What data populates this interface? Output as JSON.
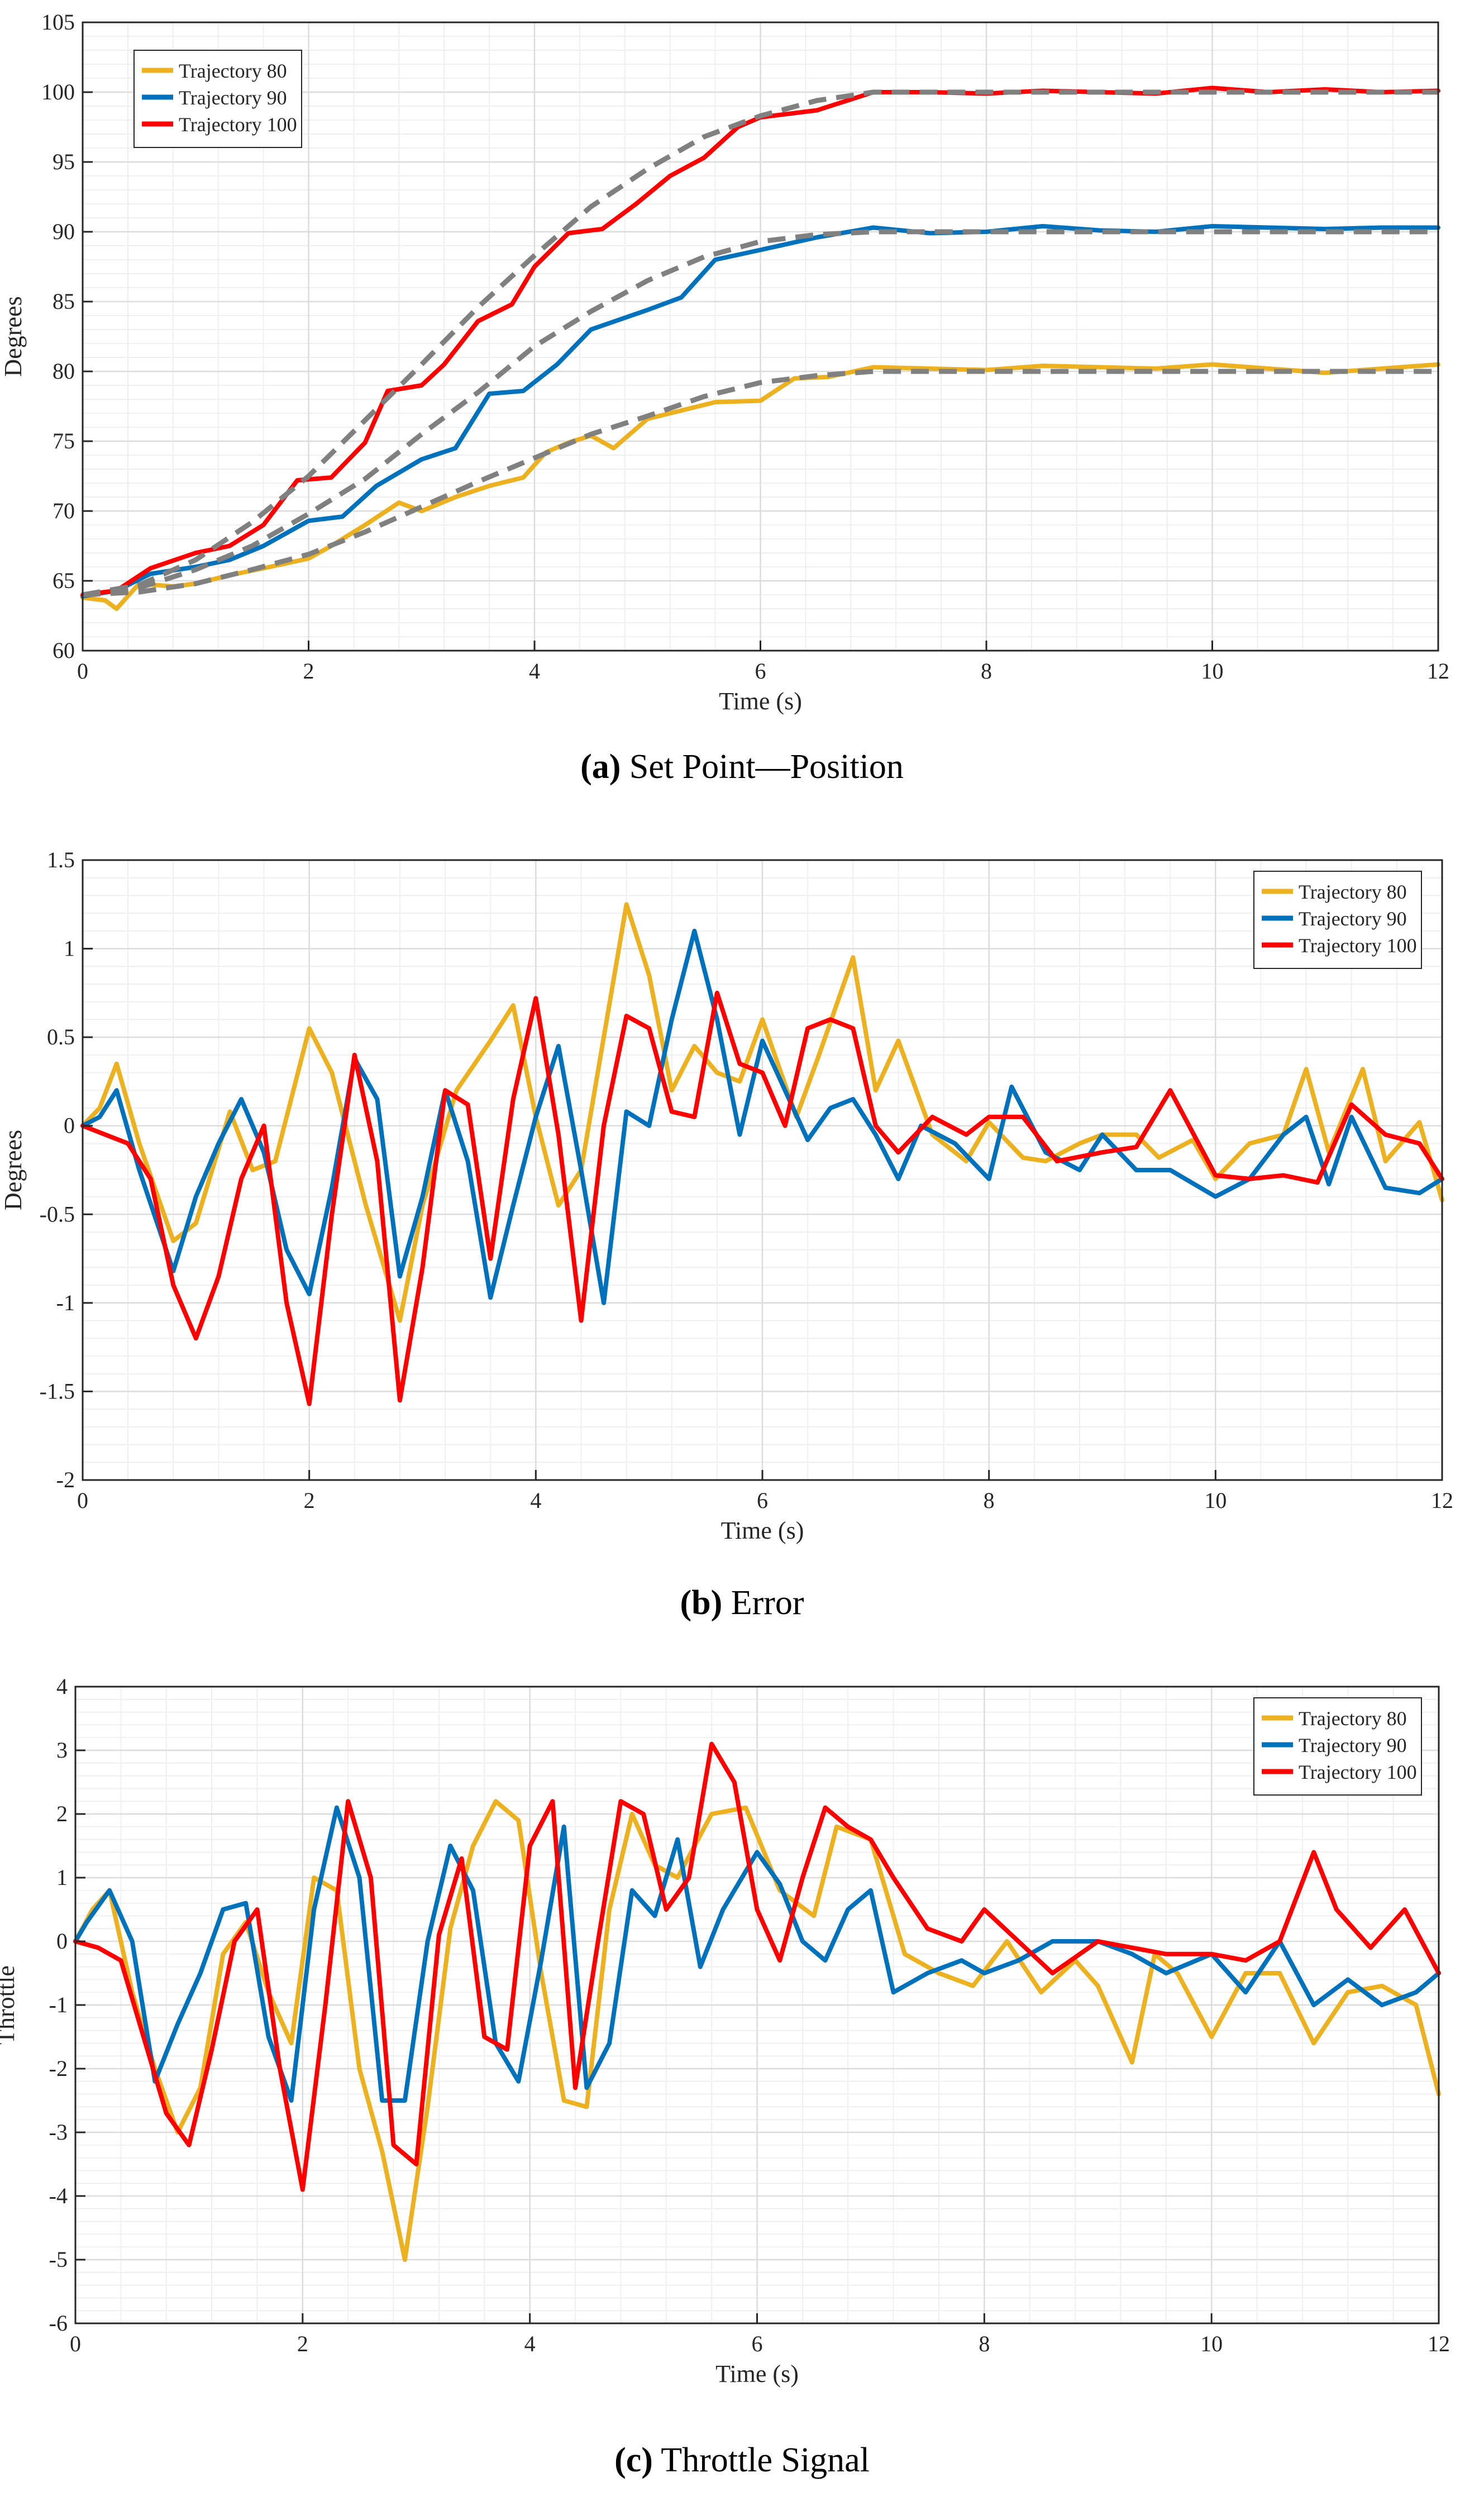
{
  "colors": {
    "t80": "#EDB120",
    "t90": "#0072BD",
    "t100": "#FF0000",
    "ref": "#808080"
  },
  "captions": [
    {
      "label": "(a)",
      "text": " Set Point—Position"
    },
    {
      "label": "(b)",
      "text": " Error"
    },
    {
      "label": "(c)",
      "text": " Throttle Signal"
    }
  ],
  "chart_data": [
    {
      "type": "line",
      "title": "",
      "xlabel": "Time (s)",
      "ylabel": "Degrees",
      "xlim": [
        0,
        12
      ],
      "ylim": [
        60,
        105
      ],
      "xticks": [
        0,
        2,
        4,
        6,
        8,
        10,
        12
      ],
      "yticks": [
        60,
        65,
        70,
        75,
        80,
        85,
        90,
        95,
        100,
        105
      ],
      "grid": true,
      "legend": "top-left",
      "reference_style": "dashed gray",
      "series": [
        {
          "name": "Trajectory 80",
          "color_key": "t80",
          "x": [
            0,
            0.2,
            0.3,
            0.5,
            0.8,
            1.0,
            1.3,
            1.6,
            2.0,
            2.2,
            2.5,
            2.8,
            3.0,
            3.3,
            3.6,
            3.9,
            4.1,
            4.3,
            4.5,
            4.7,
            5.0,
            5.3,
            5.6,
            6.0,
            6.3,
            6.6,
            7.0,
            7.5,
            8.0,
            8.5,
            9.0,
            9.5,
            10.0,
            10.5,
            11.0,
            11.5,
            12.0
          ],
          "y": [
            63.8,
            63.6,
            63.0,
            64.8,
            64.6,
            64.8,
            65.4,
            65.9,
            66.6,
            67.5,
            69.0,
            70.6,
            70.0,
            71.0,
            71.8,
            72.4,
            74.2,
            74.9,
            75.4,
            74.5,
            76.6,
            77.2,
            77.8,
            77.9,
            79.5,
            79.6,
            80.3,
            80.2,
            80.1,
            80.4,
            80.3,
            80.2,
            80.5,
            80.2,
            79.9,
            80.2,
            80.5
          ]
        },
        {
          "name": "Trajectory 90",
          "color_key": "t90",
          "x": [
            0,
            0.3,
            0.6,
            1.0,
            1.3,
            1.6,
            2.0,
            2.3,
            2.6,
            3.0,
            3.3,
            3.6,
            3.9,
            4.2,
            4.5,
            5.0,
            5.3,
            5.6,
            6.0,
            6.5,
            7.0,
            7.5,
            8.0,
            8.5,
            9.0,
            9.5,
            10.0,
            10.5,
            11.0,
            11.5,
            12.0
          ],
          "y": [
            63.9,
            64.3,
            65.5,
            66.0,
            66.5,
            67.5,
            69.3,
            69.6,
            71.8,
            73.7,
            74.5,
            78.4,
            78.6,
            80.5,
            83.0,
            84.4,
            85.3,
            88.0,
            88.7,
            89.6,
            90.3,
            89.9,
            90.0,
            90.4,
            90.1,
            90.0,
            90.4,
            90.3,
            90.2,
            90.3,
            90.3
          ]
        },
        {
          "name": "Trajectory 100",
          "color_key": "t100",
          "x": [
            0,
            0.3,
            0.6,
            1.0,
            1.3,
            1.6,
            1.9,
            2.2,
            2.5,
            2.7,
            3.0,
            3.2,
            3.5,
            3.8,
            4.0,
            4.3,
            4.6,
            4.9,
            5.2,
            5.5,
            5.8,
            6.0,
            6.5,
            7.0,
            7.5,
            8.0,
            8.5,
            9.0,
            9.5,
            10.0,
            10.5,
            11.0,
            11.5,
            12.0
          ],
          "y": [
            64.0,
            64.3,
            65.9,
            67.0,
            67.5,
            69.0,
            72.2,
            72.4,
            74.9,
            78.6,
            79.0,
            80.5,
            83.6,
            84.8,
            87.5,
            89.9,
            90.2,
            92.0,
            94.0,
            95.3,
            97.5,
            98.2,
            98.7,
            100.0,
            100.0,
            99.9,
            100.1,
            100.0,
            99.9,
            100.3,
            100.0,
            100.2,
            100.0,
            100.1
          ]
        },
        {
          "name": "",
          "color_key": "ref",
          "x": [
            0,
            0.5,
            1.0,
            1.5,
            2.0,
            2.5,
            3.0,
            3.5,
            4.0,
            4.5,
            5.0,
            5.5,
            6.0,
            6.5,
            7.0,
            7.5,
            8,
            9,
            10,
            11,
            12
          ],
          "y80": [
            64.0,
            64.2,
            64.8,
            65.8,
            66.9,
            68.5,
            70.3,
            72.1,
            73.8,
            75.5,
            76.8,
            78.2,
            79.2,
            79.7,
            80.0,
            80.0,
            80,
            80,
            80,
            80,
            80
          ],
          "y90": [
            64.0,
            64.5,
            65.8,
            67.5,
            69.8,
            72.3,
            75.5,
            78.5,
            81.8,
            84.3,
            86.5,
            88.2,
            89.3,
            89.8,
            90.0,
            90.0,
            90,
            90,
            90,
            90,
            90
          ],
          "y100": [
            64.0,
            64.7,
            66.5,
            69.2,
            72.5,
            76.5,
            80.5,
            84.6,
            88.3,
            91.8,
            94.5,
            96.8,
            98.3,
            99.4,
            100.0,
            100.0,
            100,
            100,
            100,
            100,
            100
          ]
        }
      ]
    },
    {
      "type": "line",
      "title": "",
      "xlabel": "Time (s)",
      "ylabel": "Degrees",
      "xlim": [
        0,
        12
      ],
      "ylim": [
        -2,
        1.5
      ],
      "xticks": [
        0,
        2,
        4,
        6,
        8,
        10,
        12
      ],
      "yticks": [
        -2,
        -1.5,
        -1,
        -0.5,
        0,
        0.5,
        1,
        1.5
      ],
      "grid": true,
      "legend": "top-right",
      "series": [
        {
          "name": "Trajectory 80",
          "color_key": "t80",
          "x": [
            0,
            0.15,
            0.3,
            0.5,
            0.8,
            1.0,
            1.3,
            1.5,
            1.7,
            2.0,
            2.2,
            2.5,
            2.8,
            3.0,
            3.3,
            3.6,
            3.8,
            4.0,
            4.2,
            4.4,
            4.6,
            4.8,
            5.0,
            5.2,
            5.4,
            5.6,
            5.8,
            6.0,
            6.3,
            6.5,
            6.8,
            7.0,
            7.2,
            7.5,
            7.8,
            8.0,
            8.3,
            8.5,
            8.8,
            9.0,
            9.3,
            9.5,
            9.8,
            10.0,
            10.3,
            10.6,
            10.8,
            11.0,
            11.3,
            11.5,
            11.8,
            12.0
          ],
          "y": [
            0,
            0.1,
            0.35,
            -0.1,
            -0.65,
            -0.55,
            0.08,
            -0.25,
            -0.2,
            0.55,
            0.3,
            -0.45,
            -1.1,
            -0.45,
            0.2,
            0.48,
            0.68,
            0.05,
            -0.45,
            -0.25,
            0.5,
            1.25,
            0.85,
            0.2,
            0.45,
            0.3,
            0.25,
            0.6,
            0.05,
            0.4,
            0.95,
            0.2,
            0.48,
            -0.05,
            -0.2,
            0.02,
            -0.18,
            -0.2,
            -0.1,
            -0.05,
            -0.05,
            -0.18,
            -0.08,
            -0.3,
            -0.1,
            -0.05,
            0.32,
            -0.15,
            0.32,
            -0.2,
            0.02,
            -0.42
          ]
        },
        {
          "name": "Trajectory 90",
          "color_key": "t90",
          "x": [
            0,
            0.15,
            0.3,
            0.5,
            0.8,
            1.0,
            1.2,
            1.4,
            1.6,
            1.8,
            2.0,
            2.2,
            2.4,
            2.6,
            2.8,
            3.0,
            3.2,
            3.4,
            3.6,
            3.8,
            4.0,
            4.2,
            4.4,
            4.6,
            4.8,
            5.0,
            5.2,
            5.4,
            5.6,
            5.8,
            6.0,
            6.2,
            6.4,
            6.6,
            6.8,
            7.0,
            7.2,
            7.4,
            7.7,
            8.0,
            8.2,
            8.5,
            8.8,
            9.0,
            9.3,
            9.6,
            10.0,
            10.3,
            10.6,
            10.8,
            11.0,
            11.2,
            11.5,
            11.8,
            12.0
          ],
          "y": [
            0,
            0.05,
            0.2,
            -0.25,
            -0.82,
            -0.4,
            -0.1,
            0.15,
            -0.15,
            -0.7,
            -0.95,
            -0.35,
            0.38,
            0.15,
            -0.85,
            -0.4,
            0.2,
            -0.2,
            -0.97,
            -0.45,
            0.05,
            0.45,
            -0.25,
            -1.0,
            0.08,
            0.0,
            0.6,
            1.1,
            0.6,
            -0.05,
            0.48,
            0.2,
            -0.08,
            0.1,
            0.15,
            -0.05,
            -0.3,
            0.0,
            -0.1,
            -0.3,
            0.22,
            -0.15,
            -0.25,
            -0.05,
            -0.25,
            -0.25,
            -0.4,
            -0.3,
            -0.05,
            0.05,
            -0.33,
            0.05,
            -0.35,
            -0.38,
            -0.3
          ]
        },
        {
          "name": "Trajectory 100",
          "color_key": "t100",
          "x": [
            0,
            0.2,
            0.4,
            0.6,
            0.8,
            1.0,
            1.2,
            1.4,
            1.6,
            1.8,
            2.0,
            2.2,
            2.4,
            2.6,
            2.8,
            3.0,
            3.2,
            3.4,
            3.6,
            3.8,
            4.0,
            4.2,
            4.4,
            4.6,
            4.8,
            5.0,
            5.2,
            5.4,
            5.6,
            5.8,
            6.0,
            6.2,
            6.4,
            6.6,
            6.8,
            7.0,
            7.2,
            7.5,
            7.8,
            8.0,
            8.3,
            8.6,
            9.0,
            9.3,
            9.6,
            10.0,
            10.3,
            10.6,
            10.9,
            11.2,
            11.5,
            11.8,
            12.0
          ],
          "y": [
            0,
            -0.05,
            -0.1,
            -0.3,
            -0.9,
            -1.2,
            -0.85,
            -0.3,
            0.0,
            -1.0,
            -1.57,
            -0.5,
            0.4,
            -0.2,
            -1.55,
            -0.8,
            0.2,
            0.12,
            -0.75,
            0.15,
            0.72,
            -0.05,
            -1.1,
            0.0,
            0.62,
            0.55,
            0.08,
            0.05,
            0.75,
            0.35,
            0.3,
            0.0,
            0.55,
            0.6,
            0.55,
            0.0,
            -0.15,
            0.05,
            -0.05,
            0.05,
            0.05,
            -0.2,
            -0.15,
            -0.12,
            0.2,
            -0.28,
            -0.3,
            -0.28,
            -0.32,
            0.12,
            -0.05,
            -0.1,
            -0.3
          ]
        }
      ]
    },
    {
      "type": "line",
      "title": "",
      "xlabel": "Time (s)",
      "ylabel": "Throttle",
      "xlim": [
        0,
        12
      ],
      "ylim": [
        -6,
        4
      ],
      "xticks": [
        0,
        2,
        4,
        6,
        8,
        10,
        12
      ],
      "yticks": [
        -6,
        -5,
        -4,
        -3,
        -2,
        -1,
        0,
        1,
        2,
        3,
        4
      ],
      "grid": true,
      "legend": "top-right",
      "series": [
        {
          "name": "Trajectory 80",
          "color_key": "t80",
          "x": [
            0,
            0.15,
            0.3,
            0.5,
            0.7,
            0.9,
            1.1,
            1.3,
            1.5,
            1.7,
            1.9,
            2.1,
            2.3,
            2.5,
            2.7,
            2.9,
            3.1,
            3.3,
            3.5,
            3.7,
            3.9,
            4.1,
            4.3,
            4.5,
            4.7,
            4.9,
            5.1,
            5.3,
            5.6,
            5.9,
            6.2,
            6.5,
            6.7,
            7.0,
            7.3,
            7.6,
            7.9,
            8.2,
            8.5,
            8.8,
            9.0,
            9.3,
            9.5,
            9.7,
            10.0,
            10.3,
            10.6,
            10.9,
            11.2,
            11.5,
            11.8,
            12.0
          ],
          "y": [
            0,
            0.5,
            0.8,
            -0.8,
            -2.0,
            -3.0,
            -2.3,
            -0.2,
            0.3,
            -0.8,
            -1.6,
            1.0,
            0.8,
            -2.0,
            -3.3,
            -5.0,
            -2.6,
            0.2,
            1.5,
            2.2,
            1.9,
            -0.5,
            -2.5,
            -2.6,
            0.5,
            2.0,
            1.2,
            1.0,
            2.0,
            2.1,
            0.8,
            0.4,
            1.8,
            1.6,
            -0.2,
            -0.5,
            -0.7,
            0.0,
            -0.8,
            -0.3,
            -0.7,
            -1.9,
            -0.2,
            -0.5,
            -1.5,
            -0.5,
            -0.5,
            -1.6,
            -0.8,
            -0.7,
            -1.0,
            -2.4
          ]
        },
        {
          "name": "Trajectory 90",
          "color_key": "t90",
          "x": [
            0,
            0.1,
            0.3,
            0.5,
            0.7,
            0.9,
            1.1,
            1.3,
            1.5,
            1.7,
            1.9,
            2.1,
            2.3,
            2.5,
            2.7,
            2.9,
            3.1,
            3.3,
            3.5,
            3.7,
            3.9,
            4.1,
            4.3,
            4.5,
            4.7,
            4.9,
            5.1,
            5.3,
            5.5,
            5.7,
            6.0,
            6.2,
            6.4,
            6.6,
            6.8,
            7.0,
            7.2,
            7.5,
            7.8,
            8.0,
            8.3,
            8.6,
            9.0,
            9.3,
            9.6,
            10.0,
            10.3,
            10.6,
            10.9,
            11.2,
            11.5,
            11.8,
            12.0
          ],
          "y": [
            0,
            0.3,
            0.8,
            0.0,
            -2.2,
            -1.3,
            -0.5,
            0.5,
            0.6,
            -1.5,
            -2.5,
            0.5,
            2.1,
            1.0,
            -2.5,
            -2.5,
            0.0,
            1.5,
            0.8,
            -1.6,
            -2.2,
            -0.3,
            1.8,
            -2.3,
            -1.6,
            0.8,
            0.4,
            1.6,
            -0.4,
            0.5,
            1.4,
            0.9,
            0.0,
            -0.3,
            0.5,
            0.8,
            -0.8,
            -0.5,
            -0.3,
            -0.5,
            -0.3,
            0.0,
            0.0,
            -0.2,
            -0.5,
            -0.2,
            -0.8,
            0.0,
            -1.0,
            -0.6,
            -1.0,
            -0.8,
            -0.5
          ]
        },
        {
          "name": "Trajectory 100",
          "color_key": "t100",
          "x": [
            0,
            0.2,
            0.4,
            0.6,
            0.8,
            1.0,
            1.2,
            1.4,
            1.6,
            1.8,
            2.0,
            2.2,
            2.4,
            2.6,
            2.8,
            3.0,
            3.2,
            3.4,
            3.6,
            3.8,
            4.0,
            4.2,
            4.4,
            4.6,
            4.8,
            5.0,
            5.2,
            5.4,
            5.6,
            5.8,
            6.0,
            6.2,
            6.4,
            6.6,
            6.8,
            7.0,
            7.2,
            7.5,
            7.8,
            8.0,
            8.3,
            8.6,
            9.0,
            9.3,
            9.6,
            10.0,
            10.3,
            10.6,
            10.9,
            11.1,
            11.4,
            11.7,
            12.0
          ],
          "y": [
            0,
            -0.1,
            -0.3,
            -1.5,
            -2.7,
            -3.2,
            -1.7,
            0.0,
            0.5,
            -2.0,
            -3.9,
            -1.0,
            2.2,
            1.0,
            -3.2,
            -3.5,
            0.1,
            1.3,
            -1.5,
            -1.7,
            1.5,
            2.2,
            -2.3,
            0.0,
            2.2,
            2.0,
            0.5,
            1.0,
            3.1,
            2.5,
            0.5,
            -0.3,
            1.0,
            2.1,
            1.8,
            1.6,
            1.0,
            0.2,
            0.0,
            0.5,
            0.0,
            -0.5,
            0.0,
            -0.1,
            -0.2,
            -0.2,
            -0.3,
            0.0,
            1.4,
            0.5,
            -0.1,
            0.5,
            -0.5
          ]
        }
      ]
    }
  ]
}
